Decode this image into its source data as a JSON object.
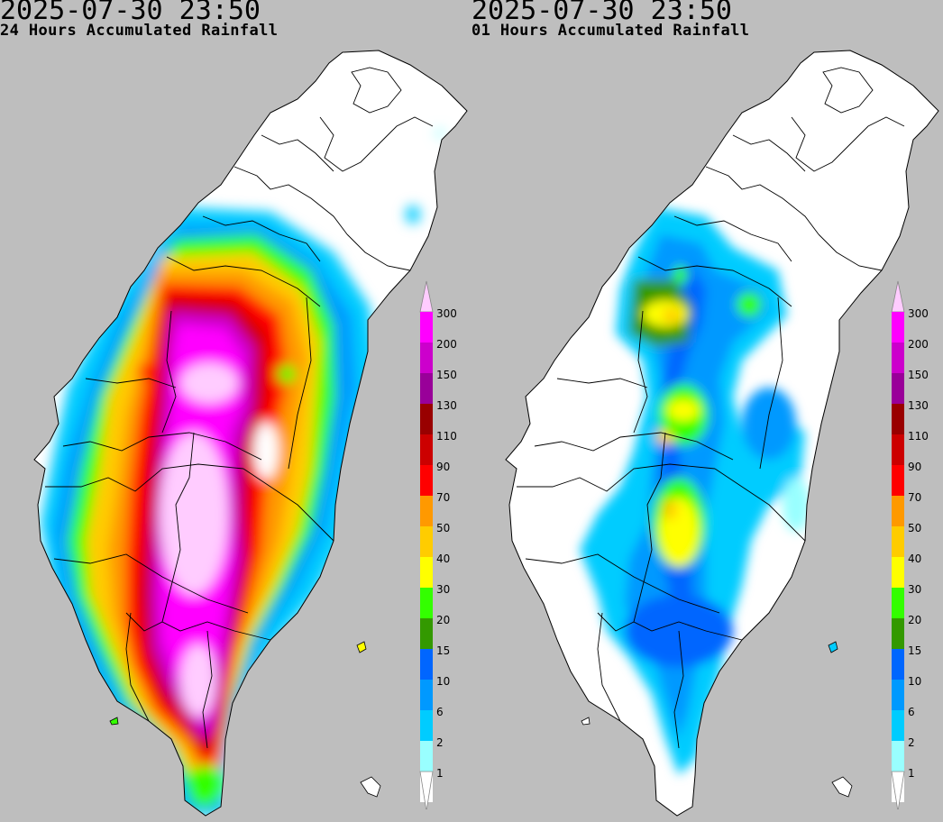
{
  "panels": [
    {
      "id": "left",
      "timestamp": "2025-07-30 23:50",
      "subtitle": "24 Hours Accumulated Rainfall"
    },
    {
      "id": "right",
      "timestamp": "2025-07-30 23:50",
      "subtitle": "01 Hours Accumulated Rainfall"
    }
  ],
  "legend": {
    "levels": [
      "300",
      "200",
      "150",
      "130",
      "110",
      "90",
      "70",
      "50",
      "40",
      "30",
      "20",
      "15",
      "10",
      "6",
      "2",
      "1"
    ],
    "colors": [
      "#ff00ff",
      "#cc00cc",
      "#990099",
      "#990000",
      "#cc0000",
      "#ff0000",
      "#ff9900",
      "#ffcc00",
      "#ffff00",
      "#33ff00",
      "#339900",
      "#0066ff",
      "#0099ff",
      "#00ccff",
      "#99ffff",
      "#ffffff"
    ],
    "top_cap_color": "#ffccff"
  },
  "colors": {
    "background": "#bebebe",
    "land": "#ffffff",
    "border": "#000000"
  }
}
